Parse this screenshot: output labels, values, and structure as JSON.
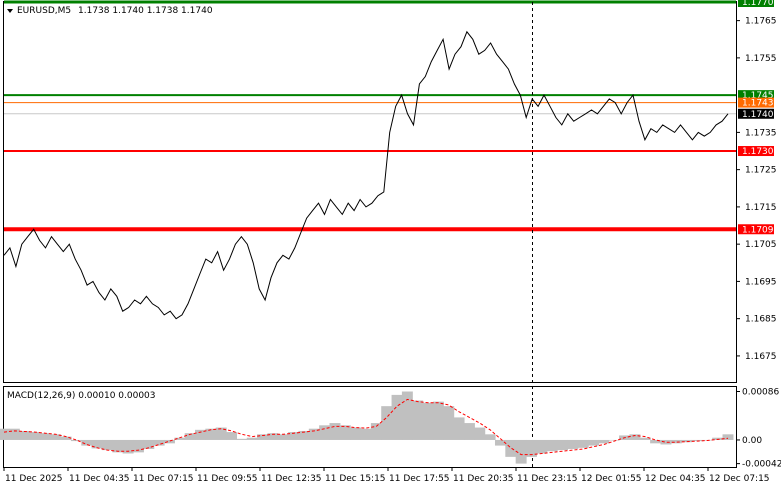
{
  "header": {
    "symbol": "EURUSD,M5",
    "ohlc": "1.1738 1.1740 1.1738 1.1740"
  },
  "macd": {
    "label": "MACD(12,26,9) 0.00010 0.00003",
    "axis_labels": [
      "0.00086",
      "0.00",
      "-0.00042"
    ],
    "ylim": [
      -0.00048,
      0.00094
    ],
    "hist_color": "#c0c0c0",
    "signal_color": "#ff0000"
  },
  "chart_data": {
    "type": "line",
    "title": "",
    "xlabel": "",
    "ylabel": "",
    "ylim": [
      1.1668,
      1.177
    ],
    "x_tick_labels": [
      "11 Dec 2025",
      "11 Dec 04:35",
      "11 Dec 07:15",
      "11 Dec 09:55",
      "11 Dec 12:35",
      "11 Dec 15:15",
      "11 Dec 17:55",
      "11 Dec 20:35",
      "11 Dec 23:15",
      "12 Dec 01:55",
      "12 Dec 04:35",
      "12 Dec 07:15"
    ],
    "y_tick_labels": [
      "1.1765",
      "1.1755",
      "1.1735",
      "1.1725",
      "1.1715",
      "1.1705",
      "1.1695",
      "1.1685",
      "1.1675"
    ],
    "y_ticks": [
      1.1765,
      1.1755,
      1.1735,
      1.1725,
      1.1715,
      1.1705,
      1.1695,
      1.1685,
      1.1675
    ],
    "series": [
      {
        "values": [
          1.1702,
          1.1704,
          1.1699,
          1.1705,
          1.1707,
          1.1709,
          1.1706,
          1.1704,
          1.1707,
          1.1705,
          1.1703,
          1.1705,
          1.1701,
          1.1698,
          1.1694,
          1.1695,
          1.1692,
          1.169,
          1.1693,
          1.1691,
          1.1687,
          1.1688,
          1.169,
          1.1689,
          1.1691,
          1.1689,
          1.1688,
          1.1686,
          1.1687,
          1.1685,
          1.1686,
          1.1689,
          1.1693,
          1.1697,
          1.1701,
          1.17,
          1.1703,
          1.1698,
          1.1701,
          1.1705,
          1.1707,
          1.1705,
          1.17,
          1.1693,
          1.169,
          1.1696,
          1.17,
          1.1702,
          1.1701,
          1.1704,
          1.1708,
          1.1712,
          1.1714,
          1.1716,
          1.1713,
          1.1717,
          1.1715,
          1.1713,
          1.1716,
          1.1714,
          1.1717,
          1.1715,
          1.1716,
          1.1718,
          1.1719,
          1.1735,
          1.1742,
          1.1745,
          1.174,
          1.1737,
          1.1748,
          1.175,
          1.1754,
          1.1757,
          1.176,
          1.1752,
          1.1756,
          1.1758,
          1.1762,
          1.176,
          1.1756,
          1.1757,
          1.1759,
          1.1756,
          1.1754,
          1.1752,
          1.1748,
          1.1745,
          1.1739,
          1.1744,
          1.1742,
          1.1745,
          1.1742,
          1.1739,
          1.1737,
          1.174,
          1.1738,
          1.1739,
          1.174,
          1.1741,
          1.174,
          1.1742,
          1.1744,
          1.1743,
          1.174,
          1.1743,
          1.1745,
          1.1738,
          1.1733,
          1.1736,
          1.1735,
          1.1737,
          1.1736,
          1.1735,
          1.1737,
          1.1735,
          1.1733,
          1.1735,
          1.1734,
          1.1735,
          1.1737,
          1.1738,
          1.174
        ]
      }
    ],
    "levels": [
      {
        "value": 1.177,
        "label": "1.1770",
        "color": "#008000",
        "width": 3
      },
      {
        "value": 1.1745,
        "label": "1.1745",
        "color": "#008000",
        "width": 2
      },
      {
        "value": 1.1743,
        "label": "1.1743",
        "color": "#ff6a00",
        "width": 1
      },
      {
        "value": 1.174,
        "label": "1.1740",
        "color": "#000000",
        "width": 0
      },
      {
        "value": 1.173,
        "label": "1.1730",
        "color": "#ff0000",
        "width": 2
      },
      {
        "value": 1.1709,
        "label": "1.1709",
        "color": "#ff0000",
        "width": 4
      }
    ],
    "macd_hist": [
      0.0002,
      0.0002,
      0.00016,
      0.00014,
      0.00012,
      0.0001,
      6e-05,
      -2e-05,
      -0.0001,
      -0.00015,
      -0.00018,
      -0.00022,
      -0.00024,
      -0.00022,
      -0.00016,
      -0.0001,
      -6e-05,
      4e-05,
      0.00012,
      0.00018,
      0.0002,
      0.00022,
      0.00014,
      2e-05,
      4e-05,
      0.0001,
      0.00012,
      0.0001,
      0.00014,
      0.00016,
      0.0002,
      0.00026,
      0.0003,
      0.00026,
      0.00022,
      0.0002,
      0.0003,
      0.0006,
      0.0008,
      0.00086,
      0.0007,
      0.00066,
      0.00068,
      0.0006,
      0.0004,
      0.0003,
      0.00022,
      0.0001,
      -0.0001,
      -0.0003,
      -0.00042,
      -0.0003,
      -0.00024,
      -0.0002,
      -0.00018,
      -0.00016,
      -0.00014,
      -0.0001,
      -6e-05,
      0.0,
      8e-05,
      0.0001,
      4e-05,
      -6e-05,
      -8e-05,
      -6e-05,
      -4e-05,
      -2e-05,
      0.0,
      4e-05,
      0.0001
    ],
    "macd_signal": [
      0.00014,
      0.00016,
      0.00015,
      0.00014,
      0.00012,
      0.0001,
      6e-05,
      0.0,
      -8e-05,
      -0.00014,
      -0.00018,
      -0.0002,
      -0.0002,
      -0.00018,
      -0.00014,
      -8e-05,
      -2e-05,
      4e-05,
      0.0001,
      0.00014,
      0.00018,
      0.0002,
      0.00016,
      0.0001,
      6e-05,
      8e-05,
      0.0001,
      0.0001,
      0.00012,
      0.00014,
      0.00016,
      0.0002,
      0.00024,
      0.00024,
      0.00022,
      0.00021,
      0.00024,
      0.0004,
      0.0006,
      0.00072,
      0.00068,
      0.00066,
      0.00066,
      0.00062,
      0.0005,
      0.0004,
      0.0003,
      0.00018,
      2e-05,
      -0.00014,
      -0.00026,
      -0.00026,
      -0.00024,
      -0.00022,
      -0.0002,
      -0.00018,
      -0.00016,
      -0.00012,
      -8e-05,
      -2e-05,
      4e-05,
      8e-05,
      6e-05,
      0.0,
      -4e-05,
      -4e-05,
      -3e-05,
      -2e-05,
      -1e-05,
      1e-05,
      3e-05
    ]
  }
}
